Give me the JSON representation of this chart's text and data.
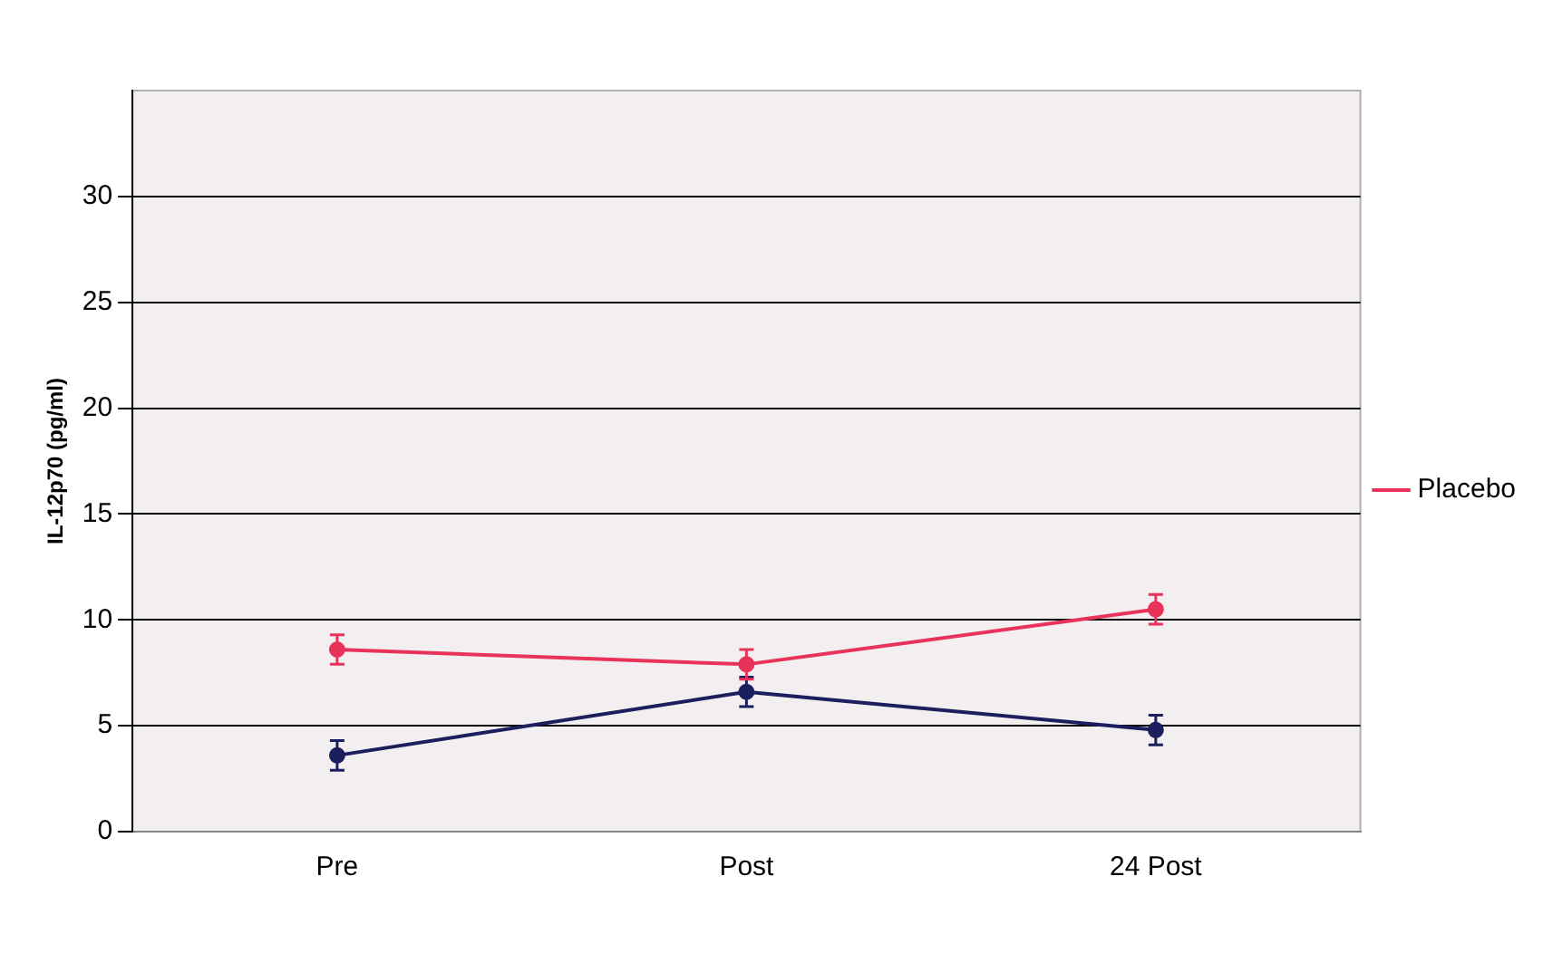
{
  "chart_data": {
    "type": "line",
    "ylabel": "IL-12p70 (pg/ml)",
    "categories": [
      "Pre",
      "Post",
      "24 Post"
    ],
    "series": [
      {
        "color": "#1c1f5e",
        "values": [
          3.6,
          6.6,
          4.8
        ],
        "errors": [
          0.7,
          0.7,
          0.7
        ]
      },
      {
        "name": "Placebo",
        "color": "#e8325a",
        "values": [
          8.6,
          7.9,
          10.5
        ],
        "errors": [
          0.7,
          0.7,
          0.7
        ]
      }
    ],
    "ylim": [
      0,
      35
    ],
    "yticks": [
      0,
      5,
      10,
      15,
      20,
      25,
      30
    ],
    "grid": "y",
    "legend": "right",
    "marker": "circle",
    "line_style": "solid"
  }
}
